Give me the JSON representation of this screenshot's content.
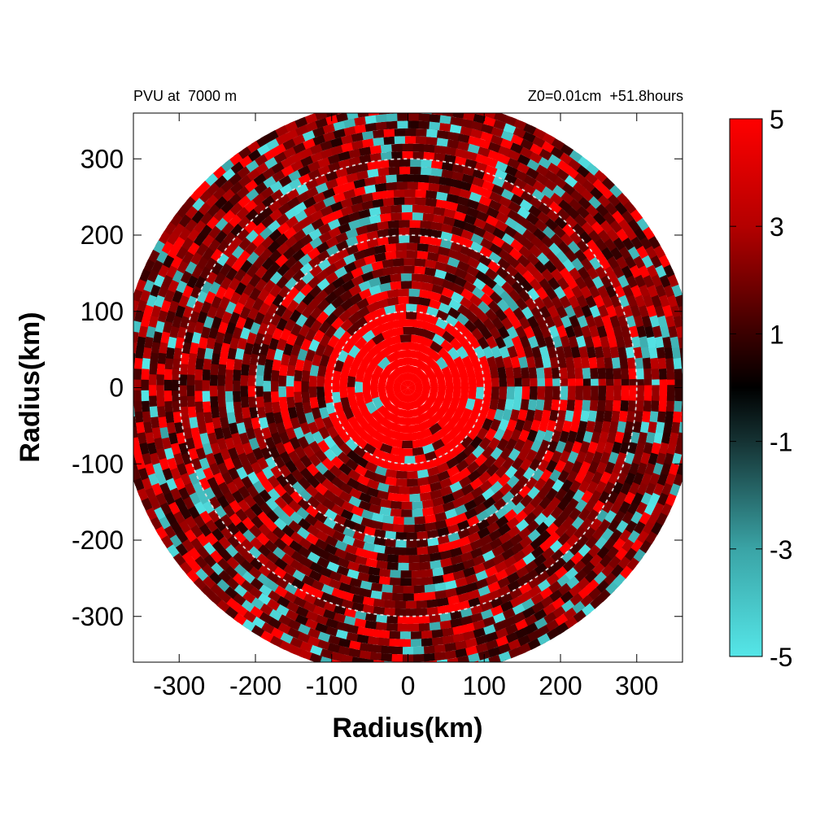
{
  "figure": {
    "title_left": "PVU at  7000 m",
    "title_right": "Z0=0.01cm  +51.8hours"
  },
  "chart_data": {
    "type": "heatmap",
    "title": "PVU at  7000 m",
    "subtitle": "Z0=0.01cm  +51.8hours",
    "xlabel": "Radius(km)",
    "ylabel": "Radius(km)",
    "xlim": [
      -360,
      360
    ],
    "ylim": [
      -360,
      360
    ],
    "xticks": [
      -300,
      -200,
      -100,
      0,
      100,
      200,
      300
    ],
    "yticks": [
      -300,
      -200,
      -100,
      0,
      100,
      200,
      300
    ],
    "xtick_labels": [
      "-300",
      "-200",
      "-100",
      "0",
      "100",
      "200",
      "300"
    ],
    "ytick_labels": [
      "-300",
      "-200",
      "-100",
      "0",
      "100",
      "200",
      "300"
    ],
    "grid": false,
    "domain_radius_km": 380,
    "reference_circles_km": [
      100,
      200,
      300
    ],
    "field_description": "Potential vorticity (PVU), polar domain centered on storm; core > 5 PVU within ~60 km, mixed positive (red) and negative (cyan) bands outward",
    "colorbar": {
      "min": -5,
      "max": 5,
      "tick_values": [
        5,
        3,
        1,
        -1,
        -3,
        -5
      ],
      "tick_labels": [
        "5",
        "3",
        "1",
        "-1",
        "-3",
        "-5"
      ],
      "stops": [
        {
          "value": -5,
          "color": "#55e6e8"
        },
        {
          "value": -3,
          "color": "#3aa4a6"
        },
        {
          "value": -1,
          "color": "#153233"
        },
        {
          "value": 0,
          "color": "#000000"
        },
        {
          "value": 1,
          "color": "#3a0000"
        },
        {
          "value": 3,
          "color": "#b40000"
        },
        {
          "value": 5,
          "color": "#ff0000"
        }
      ]
    }
  }
}
